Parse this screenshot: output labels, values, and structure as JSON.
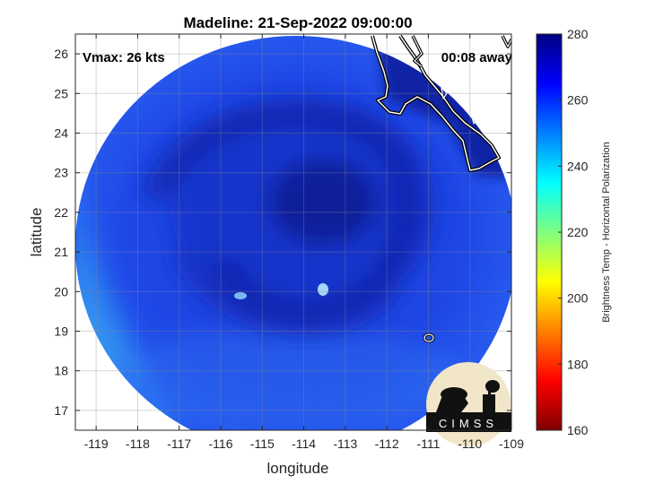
{
  "chart_data": {
    "type": "heatmap",
    "title": "Madeline: 21-Sep-2022 09:00:00",
    "xlabel": "longitude",
    "ylabel": "latitude",
    "xlim": [
      -119.5,
      -109
    ],
    "ylim": [
      16.5,
      26.5
    ],
    "x_ticks": [
      -119,
      -118,
      -117,
      -116,
      -115,
      -114,
      -113,
      -112,
      -111,
      -110,
      -109
    ],
    "y_ticks": [
      17,
      18,
      19,
      20,
      21,
      22,
      23,
      24,
      25,
      26
    ],
    "grid": true,
    "colorbar": {
      "label": "Brightness Temp - Horizontal Polarization",
      "range": [
        160,
        280
      ],
      "ticks": [
        160,
        180,
        200,
        220,
        240,
        260,
        280
      ],
      "colormap": "jet",
      "colors": [
        "#800000",
        "#ff0000",
        "#ffff00",
        "#00ffff",
        "#0000ff",
        "#000080"
      ]
    },
    "annotations": {
      "vmax": "Vmax: 26 kts",
      "time_offset": "00:08 away"
    },
    "swath": {
      "center": [
        -114.3,
        21.2
      ],
      "radius_deg": 5.3,
      "background_tb": 258,
      "storm_center": [
        -113.9,
        21.8
      ],
      "storm_core_tb": 272
    },
    "logo_text": "CIMSS"
  }
}
